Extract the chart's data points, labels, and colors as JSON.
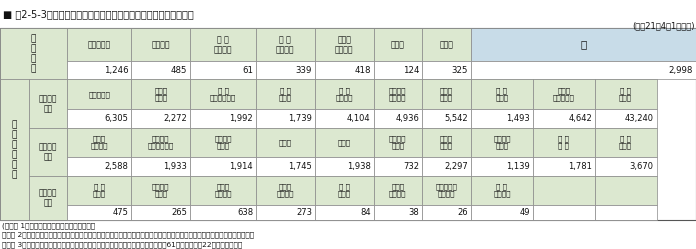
{
  "title": "■ 第2-5-3表　救助隊が乗車する車両及び主な救助器具の整備状況",
  "date_label": "(平成21年4月1日現在)",
  "header_bg": "#dce8d0",
  "blue_bg": "#c8dce8",
  "white_bg": "#ffffff",
  "border_color": "#888888",
  "vh_headers": [
    "救助工作車",
    "はしご車",
    "屋 折\nはしご車",
    "消 防\nポンプ車",
    "水槽付\nポンプ車",
    "化学車",
    "その他"
  ],
  "vh_values": [
    "1,246",
    "485",
    "61",
    "339",
    "418",
    "124",
    "325"
  ],
  "vh_total": "2,998",
  "sec1_label": "省令別表\n第１",
  "sec1_headers": [
    "三連はしご",
    "救命索\n発射銃",
    "油 圧\nスプレッダー",
    "油 圧\n切断機",
    "可 搬\nウインチ",
    "エンジン\nカッター",
    "チェー\nンソー",
    "ガ ス\n溶断器",
    "可燃性\nガス測定器",
    "空 気\n呼吸器"
  ],
  "sec1_values": [
    "6,305",
    "2,272",
    "1,992",
    "1,739",
    "4,104",
    "4,936",
    "5,542",
    "1,493",
    "4,642",
    "43,240"
  ],
  "sec2_label": "省令別表\n第２",
  "sec2_headers": [
    "空気式\nジャッキ",
    "大型油圧\nスプレッダー",
    "大型油圧\n切断機",
    "削岩機",
    "空気麺",
    "簡易画像\n探索機",
    "ロープ\n登降機",
    "ハンマー\nドリル",
    "送 排\n風 機",
    "酸 素\n呼吸器"
  ],
  "sec2_values": [
    "2,588",
    "1,933",
    "1,914",
    "1,745",
    "1,938",
    "732",
    "2,297",
    "1,139",
    "1,781",
    "3,670"
  ],
  "sec3_label": "省令別表\n第３",
  "sec3_headers": [
    "画 像\n探査機",
    "地中音響\n探知機",
    "熱画像\n直視装置",
    "夜間用\n暗視装置",
    "地 震\n警報器",
    "電磁波\n探査装置",
    "二酸化炭素\n探査装置",
    "水 中\n探査装置",
    "",
    ""
  ],
  "sec3_values": [
    "475",
    "265",
    "638",
    "273",
    "84",
    "38",
    "26",
    "49",
    "",
    ""
  ],
  "note1": "(備考） 1「救助業務実施状況調」により作成",
  "note2": "　　　 2「乗車車両」のうち「その他」には、大型ブロアー車、ウォーターカッター車、クレーン車などの特殊な車両を含む。",
  "note3": "　　　 3「省令」とは、「救助隊の編成、装備及び配置の基準を定める省令（昭和61年自治省令第22号）」をいう。"
}
